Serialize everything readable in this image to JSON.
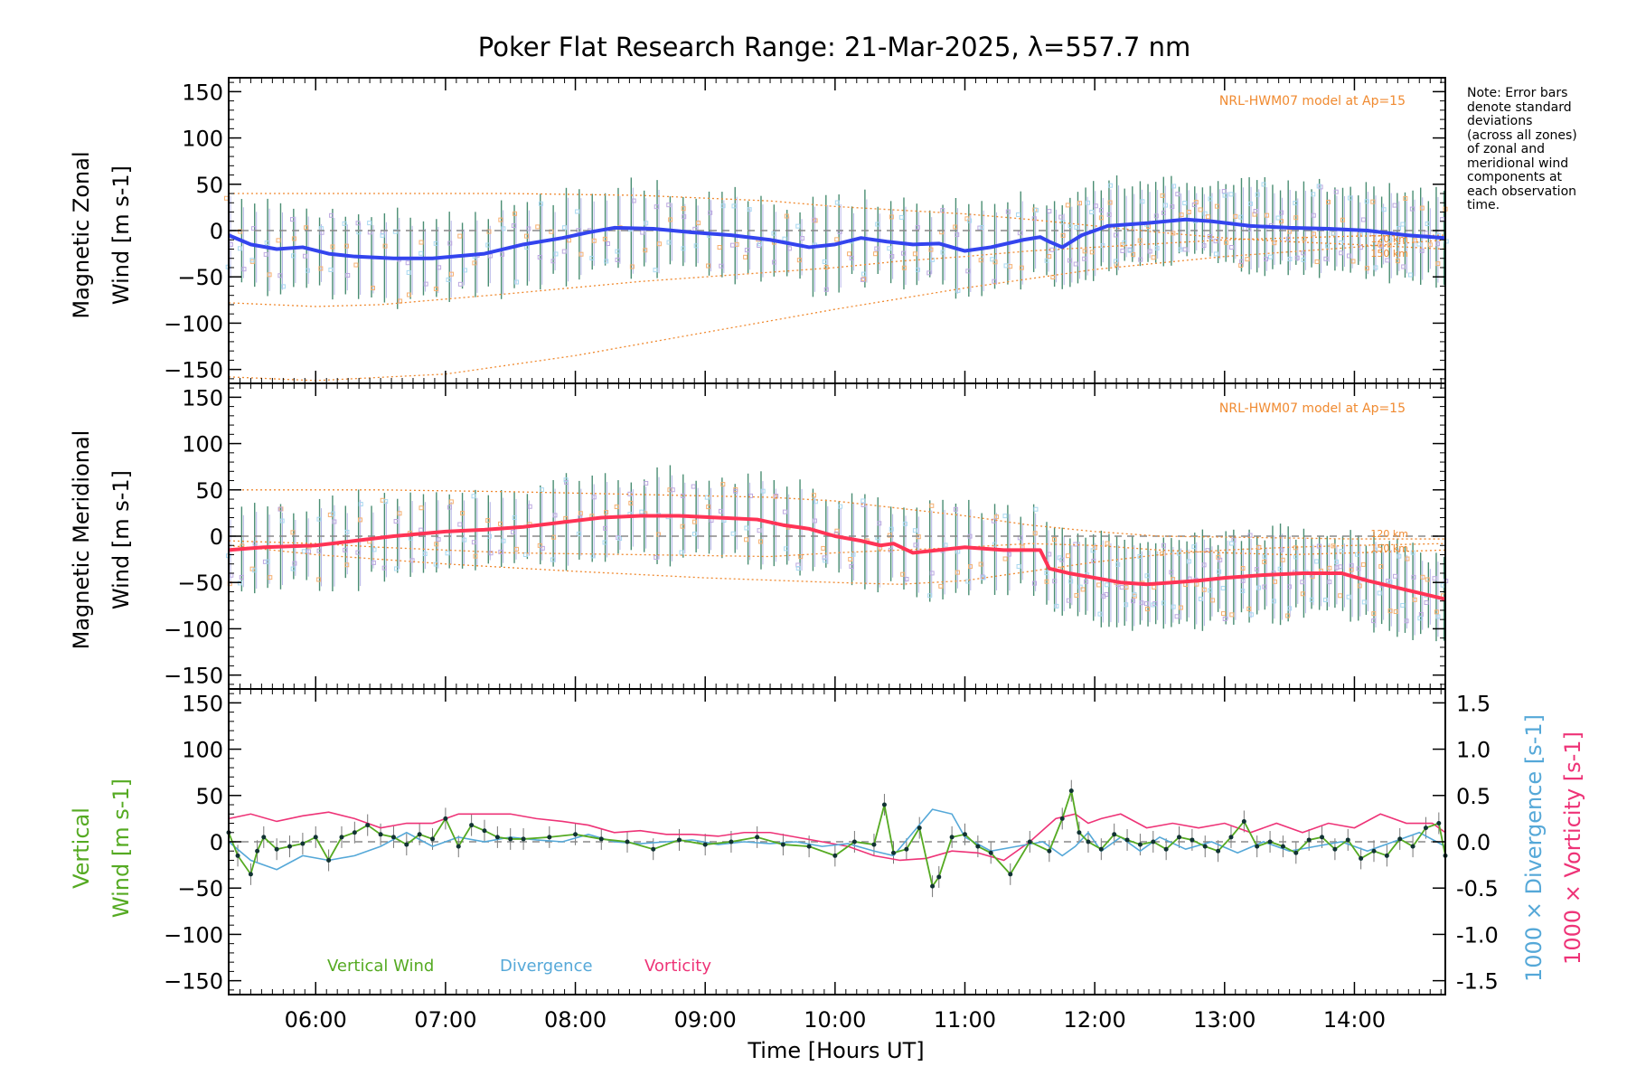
{
  "title": "Poker Flat Research Range: 21-Mar-2025, λ=557.7 nm",
  "note_lines": [
    "Note: Error bars",
    "denote standard",
    "deviations",
    "(across all zones)",
    "of zonal and",
    "meridional wind",
    "components at",
    "each observation",
    "time."
  ],
  "colors": {
    "zonal": "#3344ee",
    "meridional": "#ff3355",
    "vertical": "#55aa22",
    "divergence": "#55a8d8",
    "vorticity": "#ee3377",
    "model": "#f08a30",
    "grey_dash": "#888888",
    "scatter_purple": "#9a8fd0"
  },
  "chart_data": [
    {
      "type": "line",
      "panel": "zonal",
      "ylabel_line1": "Magnetic Zonal",
      "ylabel_line2": "Wind [m s-1]",
      "xlim": [
        5.33,
        14.7
      ],
      "ylim": [
        -165,
        165
      ],
      "yticks": [
        150,
        100,
        50,
        0,
        -50,
        -100,
        -150
      ],
      "model_label": "NRL-HWM07 model at Ap=15",
      "model_alt_labels": [
        "120 km",
        "150 km"
      ],
      "series": [
        {
          "role": "mean",
          "x": [
            5.33,
            5.5,
            5.7,
            5.9,
            6.1,
            6.3,
            6.6,
            6.9,
            7.3,
            7.6,
            7.9,
            8.1,
            8.3,
            8.6,
            8.9,
            9.2,
            9.5,
            9.8,
            10.0,
            10.2,
            10.4,
            10.6,
            10.8,
            11.0,
            11.2,
            11.45,
            11.58,
            11.65,
            11.75,
            11.9,
            12.1,
            12.4,
            12.7,
            12.9,
            13.2,
            13.5,
            13.8,
            14.1,
            14.4,
            14.7
          ],
          "y": [
            -5,
            -15,
            -20,
            -18,
            -25,
            -28,
            -30,
            -30,
            -25,
            -15,
            -8,
            -2,
            3,
            2,
            -2,
            -5,
            -10,
            -18,
            -15,
            -8,
            -12,
            -15,
            -14,
            -22,
            -18,
            -10,
            -7,
            -12,
            -18,
            -5,
            5,
            8,
            12,
            10,
            5,
            3,
            2,
            0,
            -5,
            -8
          ]
        },
        {
          "role": "model_upper",
          "x": [
            5.33,
            6.5,
            7.5,
            8.5,
            9.5,
            10.0,
            10.5,
            11.0,
            11.5,
            12.0,
            12.5,
            13.0,
            13.5,
            14.0,
            14.7
          ],
          "y": [
            40,
            40,
            40,
            38,
            32,
            26,
            22,
            18,
            12,
            5,
            -2,
            -8,
            -12,
            -15,
            -20
          ]
        },
        {
          "role": "model_mid",
          "x": [
            5.33,
            6.0,
            6.5,
            7.5,
            8.5,
            9.5,
            10.0,
            10.5,
            11.0,
            11.5,
            12.0,
            12.5,
            13.0,
            13.5,
            14.0,
            14.7
          ],
          "y": [
            -78,
            -82,
            -80,
            -68,
            -55,
            -45,
            -40,
            -33,
            -28,
            -22,
            -18,
            -14,
            -10,
            -8,
            -6,
            -5
          ]
        },
        {
          "role": "model_lower",
          "x": [
            5.33,
            6.0,
            7.0,
            8.0,
            9.0,
            10.0,
            11.0,
            12.0,
            13.0,
            14.0,
            14.7
          ],
          "y": [
            -158,
            -162,
            -155,
            -135,
            -110,
            -85,
            -62,
            -42,
            -28,
            -18,
            -10
          ]
        }
      ]
    },
    {
      "type": "line",
      "panel": "meridional",
      "ylabel_line1": "Magnetic Meridional",
      "ylabel_line2": "Wind [m s-1]",
      "xlim": [
        5.33,
        14.7
      ],
      "ylim": [
        -165,
        165
      ],
      "yticks": [
        150,
        100,
        50,
        0,
        -50,
        -100,
        -150
      ],
      "model_label": "NRL-HWM07 model at Ap=15",
      "model_alt_labels": [
        "120 km",
        "150 km"
      ],
      "series": [
        {
          "role": "mean",
          "x": [
            5.33,
            5.6,
            6.0,
            6.3,
            6.6,
            7.0,
            7.3,
            7.6,
            7.9,
            8.2,
            8.5,
            8.8,
            9.1,
            9.4,
            9.6,
            9.8,
            10.0,
            10.2,
            10.35,
            10.45,
            10.6,
            10.8,
            11.0,
            11.3,
            11.58,
            11.65,
            11.8,
            12.0,
            12.2,
            12.4,
            12.6,
            12.8,
            13.0,
            13.3,
            13.6,
            13.9,
            14.1,
            14.4,
            14.7
          ],
          "y": [
            -15,
            -12,
            -10,
            -5,
            0,
            5,
            7,
            10,
            15,
            20,
            22,
            22,
            20,
            18,
            12,
            8,
            0,
            -5,
            -10,
            -8,
            -18,
            -15,
            -12,
            -15,
            -15,
            -35,
            -40,
            -45,
            -50,
            -52,
            -50,
            -48,
            -45,
            -42,
            -40,
            -40,
            -48,
            -58,
            -68
          ]
        },
        {
          "role": "model_upper",
          "x": [
            5.33,
            6.5,
            7.5,
            8.5,
            9.5,
            10.0,
            10.5,
            11.0,
            11.5,
            12.0,
            12.5,
            13.0,
            13.5,
            14.0,
            14.7
          ],
          "y": [
            50,
            50,
            48,
            45,
            42,
            38,
            30,
            22,
            12,
            5,
            0,
            -1,
            -2,
            -3,
            -3
          ]
        },
        {
          "role": "model_mid",
          "x": [
            5.33,
            6.0,
            6.5,
            7.5,
            8.5,
            9.5,
            10.0,
            10.5,
            11.0,
            11.5,
            12.0,
            12.5,
            13.0,
            13.5,
            14.0,
            14.7
          ],
          "y": [
            -5,
            -8,
            -12,
            -18,
            -20,
            -22,
            -18,
            -15,
            -12,
            -8,
            -10,
            -15,
            -18,
            -20,
            -18,
            -15
          ]
        },
        {
          "role": "model_lower",
          "x": [
            5.33,
            6.0,
            7.0,
            8.0,
            9.0,
            10.0,
            10.5,
            11.0,
            11.5,
            12.0,
            12.5,
            13.0,
            13.5,
            14.0,
            14.7
          ],
          "y": [
            -10,
            -20,
            -30,
            -38,
            -45,
            -50,
            -52,
            -48,
            -38,
            -28,
            -20,
            -15,
            -12,
            -10,
            -8
          ]
        }
      ]
    },
    {
      "type": "line",
      "panel": "vertical",
      "ylabel_line1": "Vertical",
      "ylabel_line2": "Wind [m s-1]",
      "y2label_div": "1000 × Divergence [s-1]",
      "y2label_vor": "1000 × Vorticity [s-1]",
      "xlim": [
        5.33,
        14.7
      ],
      "ylim": [
        -165,
        165
      ],
      "y2lim": [
        -1.65,
        1.65
      ],
      "yticks": [
        150,
        100,
        50,
        0,
        -50,
        -100,
        -150
      ],
      "y2ticks": [
        1.5,
        1.0,
        0.5,
        0.0,
        -0.5,
        -1.0,
        -1.5
      ],
      "xticks": [
        "06:00",
        "07:00",
        "08:00",
        "09:00",
        "10:00",
        "11:00",
        "12:00",
        "13:00",
        "14:00"
      ],
      "xtick_values": [
        6,
        7,
        8,
        9,
        10,
        11,
        12,
        13,
        14
      ],
      "xlabel": "Time [Hours UT]",
      "legend": [
        "Vertical Wind",
        "Divergence",
        "Vorticity"
      ],
      "series": [
        {
          "name": "Vertical Wind",
          "x": [
            5.33,
            5.4,
            5.5,
            5.55,
            5.6,
            5.7,
            5.8,
            5.9,
            6.0,
            6.1,
            6.2,
            6.3,
            6.4,
            6.5,
            6.6,
            6.7,
            6.8,
            6.9,
            7.0,
            7.1,
            7.2,
            7.3,
            7.4,
            7.5,
            7.6,
            7.8,
            8.0,
            8.2,
            8.4,
            8.6,
            8.8,
            9.0,
            9.2,
            9.4,
            9.6,
            9.8,
            10.0,
            10.15,
            10.3,
            10.38,
            10.45,
            10.55,
            10.65,
            10.75,
            10.8,
            10.9,
            11.0,
            11.1,
            11.2,
            11.35,
            11.5,
            11.65,
            11.75,
            11.82,
            11.88,
            11.95,
            12.05,
            12.15,
            12.25,
            12.35,
            12.45,
            12.55,
            12.65,
            12.75,
            12.85,
            12.95,
            13.05,
            13.15,
            13.25,
            13.35,
            13.45,
            13.55,
            13.65,
            13.75,
            13.85,
            13.95,
            14.05,
            14.15,
            14.25,
            14.35,
            14.45,
            14.55,
            14.65,
            14.7
          ],
          "y": [
            10,
            -15,
            -35,
            -10,
            5,
            -8,
            -5,
            -2,
            5,
            -20,
            5,
            10,
            18,
            8,
            5,
            -3,
            8,
            3,
            25,
            -5,
            18,
            12,
            5,
            3,
            3,
            5,
            8,
            3,
            0,
            -8,
            2,
            -3,
            0,
            5,
            -3,
            -5,
            -15,
            0,
            -3,
            40,
            -12,
            -8,
            15,
            -48,
            -38,
            5,
            8,
            -5,
            -12,
            -35,
            0,
            -10,
            25,
            55,
            10,
            0,
            -8,
            8,
            2,
            -3,
            0,
            -8,
            5,
            2,
            -5,
            -10,
            5,
            22,
            -5,
            0,
            -5,
            -12,
            2,
            5,
            -8,
            2,
            -18,
            -10,
            -15,
            3,
            -5,
            15,
            20,
            -15
          ]
        },
        {
          "name": "Divergence",
          "x": [
            5.33,
            5.5,
            5.7,
            5.9,
            6.1,
            6.3,
            6.5,
            6.7,
            6.9,
            7.1,
            7.3,
            7.5,
            7.7,
            7.9,
            8.1,
            8.3,
            8.5,
            8.7,
            8.9,
            9.1,
            9.3,
            9.5,
            9.7,
            9.9,
            10.1,
            10.3,
            10.45,
            10.6,
            10.75,
            10.9,
            11.0,
            11.2,
            11.4,
            11.6,
            11.75,
            11.85,
            11.95,
            12.05,
            12.2,
            12.35,
            12.5,
            12.7,
            12.9,
            13.1,
            13.3,
            13.5,
            13.7,
            13.9,
            14.1,
            14.3,
            14.5,
            14.7
          ],
          "y": [
            0.0,
            -0.2,
            -0.3,
            -0.15,
            -0.2,
            -0.15,
            -0.05,
            0.1,
            -0.05,
            0.05,
            0.0,
            0.05,
            0.02,
            0.0,
            0.08,
            0.0,
            -0.02,
            0.0,
            0.02,
            -0.03,
            0.0,
            -0.02,
            0.0,
            -0.05,
            -0.02,
            -0.1,
            -0.15,
            0.1,
            0.35,
            0.3,
            0.05,
            -0.1,
            -0.05,
            0.0,
            -0.15,
            -0.05,
            0.1,
            -0.1,
            0.05,
            -0.1,
            0.05,
            -0.08,
            0.0,
            -0.12,
            0.0,
            -0.1,
            -0.05,
            0.0,
            -0.1,
            0.0,
            0.1,
            -0.05
          ]
        },
        {
          "name": "Vorticity",
          "x": [
            5.33,
            5.5,
            5.7,
            5.9,
            6.1,
            6.3,
            6.5,
            6.7,
            6.9,
            7.1,
            7.3,
            7.5,
            7.7,
            7.9,
            8.1,
            8.3,
            8.5,
            8.7,
            8.9,
            9.1,
            9.3,
            9.5,
            9.7,
            9.9,
            10.1,
            10.3,
            10.5,
            10.7,
            10.9,
            11.1,
            11.3,
            11.5,
            11.7,
            11.85,
            11.95,
            12.05,
            12.2,
            12.4,
            12.6,
            12.8,
            13.0,
            13.2,
            13.4,
            13.6,
            13.8,
            14.0,
            14.2,
            14.4,
            14.6,
            14.7
          ],
          "y": [
            0.25,
            0.3,
            0.22,
            0.28,
            0.32,
            0.25,
            0.15,
            0.2,
            0.2,
            0.3,
            0.3,
            0.3,
            0.25,
            0.22,
            0.18,
            0.1,
            0.12,
            0.08,
            0.08,
            0.06,
            0.1,
            0.1,
            0.05,
            0.0,
            -0.05,
            -0.15,
            -0.2,
            -0.18,
            -0.1,
            -0.12,
            -0.2,
            0.0,
            0.25,
            0.3,
            0.2,
            0.25,
            0.3,
            0.15,
            0.2,
            0.15,
            0.2,
            0.1,
            0.2,
            0.1,
            0.2,
            0.15,
            0.3,
            0.2,
            0.2,
            0.1
          ]
        }
      ]
    }
  ]
}
